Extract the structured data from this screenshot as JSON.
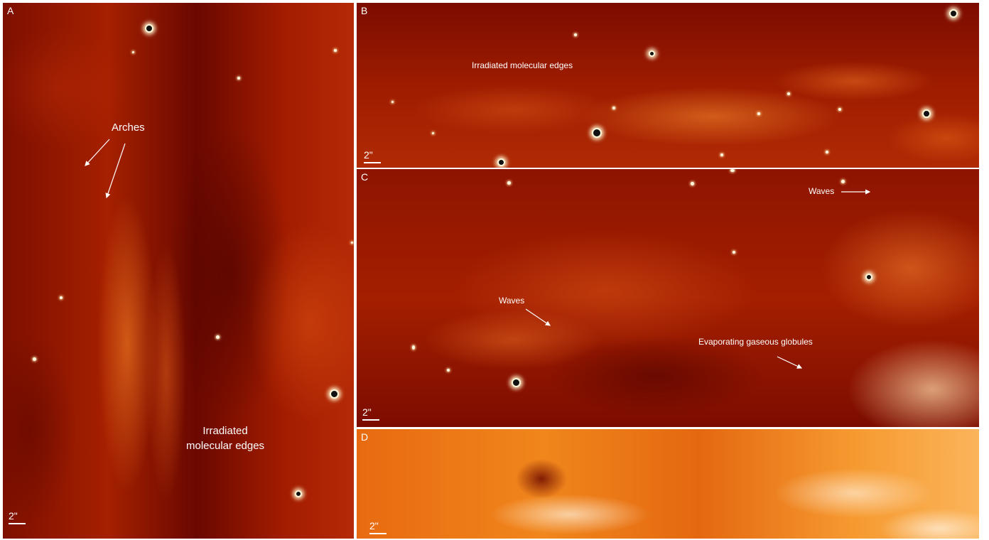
{
  "panels": {
    "a": {
      "label": "A",
      "annotations": {
        "arches": "Arches",
        "edges_line1": "Irradiated",
        "edges_line2": "molecular edges"
      },
      "scale": "2\""
    },
    "b": {
      "label": "B",
      "annotations": {
        "edges": "Irradiated molecular edges"
      },
      "scale": "2\""
    },
    "c": {
      "label": "C",
      "annotations": {
        "waves_top": "Waves",
        "waves_left": "Waves",
        "globules": "Evaporating gaseous globules"
      },
      "scale": "2\""
    },
    "d": {
      "label": "D",
      "scale": "2\""
    }
  },
  "colors": {
    "annotation": "#ffffff",
    "nebula_dark": "#7e0f00",
    "nebula_bright": "#f69a30"
  }
}
